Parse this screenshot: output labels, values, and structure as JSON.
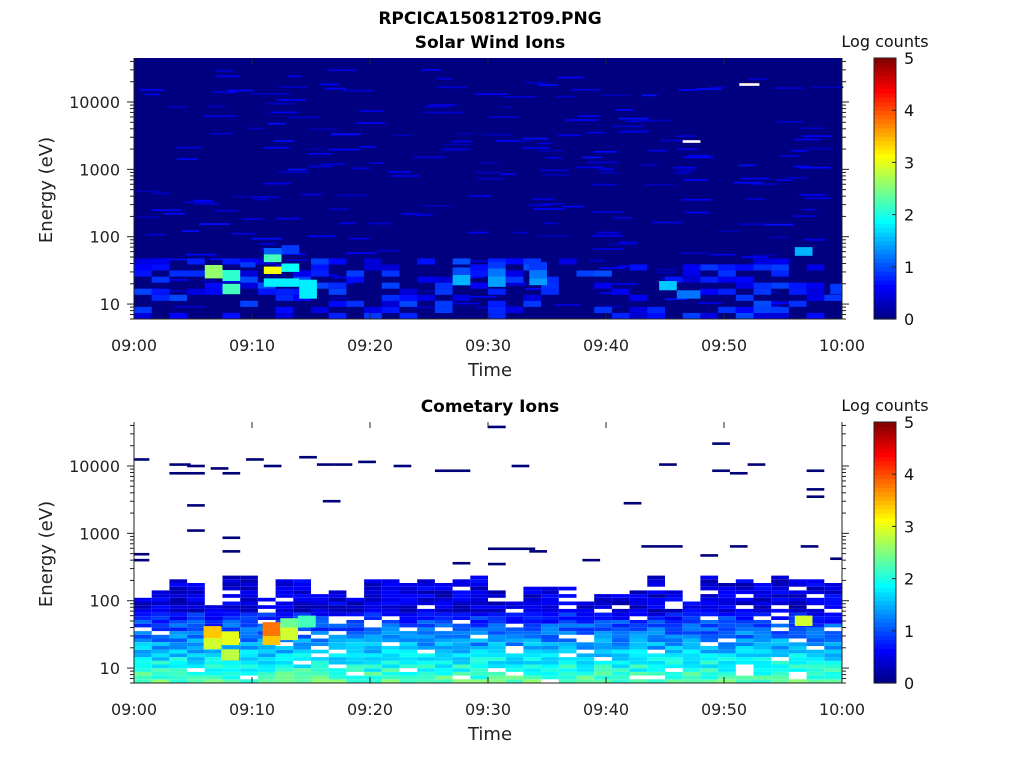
{
  "figure": {
    "title": "RPCICA150812T09.PNG"
  },
  "chart_data": [
    {
      "type": "heatmap",
      "title": "Solar Wind Ions",
      "xlabel": "Time",
      "ylabel": "Energy (eV)",
      "x_ticks": [
        "09:00",
        "09:10",
        "09:20",
        "09:30",
        "09:40",
        "09:50",
        "10:00"
      ],
      "y_ticks": [
        "10",
        "100",
        "1000",
        "10000"
      ],
      "y_scale": "log",
      "ylim": [
        6,
        45000
      ],
      "colorbar": {
        "label": "Log counts",
        "ticks": [
          "0",
          "1",
          "2",
          "3",
          "4",
          "5"
        ],
        "range": [
          0,
          5
        ],
        "colormap": "jet"
      },
      "background_value": 0,
      "cells": [
        {
          "t0": 6.0,
          "t1": 7.5,
          "e0": 24,
          "e1": 38,
          "v": 2.6
        },
        {
          "t0": 7.5,
          "t1": 9.0,
          "e0": 22,
          "e1": 32,
          "v": 2.1
        },
        {
          "t0": 7.5,
          "t1": 9.0,
          "e0": 14,
          "e1": 20,
          "v": 2.2
        },
        {
          "t0": 9.0,
          "t1": 10.3,
          "e0": 35,
          "e1": 42,
          "v": 0.9
        },
        {
          "t0": 11.0,
          "t1": 12.5,
          "e0": 28,
          "e1": 36,
          "v": 3.1
        },
        {
          "t0": 11.0,
          "t1": 12.5,
          "e0": 42,
          "e1": 55,
          "v": 2.2
        },
        {
          "t0": 11.0,
          "t1": 12.5,
          "e0": 55,
          "e1": 68,
          "v": 1.1
        },
        {
          "t0": 11.0,
          "t1": 14.0,
          "e0": 18,
          "e1": 24,
          "v": 1.8
        },
        {
          "t0": 12.5,
          "t1": 14.0,
          "e0": 30,
          "e1": 40,
          "v": 1.9
        },
        {
          "t0": 12.5,
          "t1": 14.0,
          "e0": 55,
          "e1": 75,
          "v": 0.9
        },
        {
          "t0": 14.0,
          "t1": 15.5,
          "e0": 12,
          "e1": 23,
          "v": 1.8
        },
        {
          "t0": 27.0,
          "t1": 28.5,
          "e0": 19,
          "e1": 27,
          "v": 1.5
        },
        {
          "t0": 27.0,
          "t1": 28.5,
          "e0": 28,
          "e1": 35,
          "v": 1.0
        },
        {
          "t0": 30.0,
          "t1": 31.5,
          "e0": 18,
          "e1": 26,
          "v": 1.4
        },
        {
          "t0": 30.0,
          "t1": 31.5,
          "e0": 26,
          "e1": 34,
          "v": 1.2
        },
        {
          "t0": 30.0,
          "t1": 31.5,
          "e0": 34,
          "e1": 42,
          "v": 0.9
        },
        {
          "t0": 33.5,
          "t1": 35.0,
          "e0": 19,
          "e1": 24,
          "v": 1.4
        },
        {
          "t0": 33.5,
          "t1": 35.0,
          "e0": 24,
          "e1": 32,
          "v": 1.2
        },
        {
          "t0": 33.5,
          "t1": 35.0,
          "e0": 32,
          "e1": 42,
          "v": 0.9
        },
        {
          "t0": 44.5,
          "t1": 46.0,
          "e0": 16,
          "e1": 22,
          "v": 1.6
        },
        {
          "t0": 46.0,
          "t1": 48.0,
          "e0": 12,
          "e1": 16,
          "v": 1.2
        },
        {
          "t0": 56.0,
          "t1": 57.5,
          "e0": 52,
          "e1": 70,
          "v": 1.5
        },
        {
          "t0": 59.0,
          "t1": 60.0,
          "e0": 14,
          "e1": 20,
          "v": 0.9
        },
        {
          "t0": 46.5,
          "t1": 48.0,
          "e0": 2500,
          "e1": 2700,
          "v": 5.0
        },
        {
          "t0": 51.3,
          "t1": 53.0,
          "e0": 17500,
          "e1": 19000,
          "v": 5.0
        }
      ]
    },
    {
      "type": "heatmap",
      "title": "Cometary Ions",
      "xlabel": "Time",
      "ylabel": "Energy (eV)",
      "x_ticks": [
        "09:00",
        "09:10",
        "09:20",
        "09:30",
        "09:40",
        "09:50",
        "10:00"
      ],
      "y_ticks": [
        "10",
        "100",
        "1000",
        "10000"
      ],
      "y_scale": "log",
      "ylim": [
        6,
        45000
      ],
      "colorbar": {
        "label": "Log counts",
        "ticks": [
          "0",
          "1",
          "2",
          "3",
          "4",
          "5"
        ],
        "range": [
          0,
          5
        ],
        "colormap": "jet"
      },
      "background_value": null,
      "bulk": {
        "e_min": 6,
        "e_max": 170,
        "time_bins": 40
      },
      "sparse_segments": [
        {
          "t0": 0.0,
          "t1": 1.3,
          "e": 12500
        },
        {
          "t0": 3.0,
          "t1": 4.8,
          "e": 10500
        },
        {
          "t0": 3.0,
          "t1": 6.0,
          "e": 7800
        },
        {
          "t0": 4.5,
          "t1": 6.0,
          "e": 10000
        },
        {
          "t0": 6.5,
          "t1": 8.0,
          "e": 9200
        },
        {
          "t0": 7.5,
          "t1": 9.0,
          "e": 7800
        },
        {
          "t0": 9.5,
          "t1": 11.0,
          "e": 12500
        },
        {
          "t0": 11.0,
          "t1": 12.5,
          "e": 10000
        },
        {
          "t0": 14.0,
          "t1": 15.5,
          "e": 13500
        },
        {
          "t0": 15.5,
          "t1": 17.0,
          "e": 10500
        },
        {
          "t0": 17.0,
          "t1": 18.5,
          "e": 10500
        },
        {
          "t0": 19.0,
          "t1": 20.5,
          "e": 11500
        },
        {
          "t0": 22.0,
          "t1": 23.5,
          "e": 10000
        },
        {
          "t0": 25.5,
          "t1": 28.5,
          "e": 8500
        },
        {
          "t0": 30.0,
          "t1": 31.5,
          "e": 38000
        },
        {
          "t0": 32.0,
          "t1": 33.5,
          "e": 10000
        },
        {
          "t0": 44.5,
          "t1": 46.0,
          "e": 10500
        },
        {
          "t0": 49.0,
          "t1": 50.5,
          "e": 21500
        },
        {
          "t0": 49.0,
          "t1": 50.5,
          "e": 8500
        },
        {
          "t0": 50.5,
          "t1": 52.0,
          "e": 7800
        },
        {
          "t0": 52.0,
          "t1": 53.5,
          "e": 10500
        },
        {
          "t0": 57.0,
          "t1": 58.5,
          "e": 8500
        },
        {
          "t0": 57.0,
          "t1": 58.5,
          "e": 4500
        },
        {
          "t0": 57.0,
          "t1": 58.5,
          "e": 3500
        },
        {
          "t0": 16.0,
          "t1": 17.5,
          "e": 3000
        },
        {
          "t0": 41.5,
          "t1": 43.0,
          "e": 2800
        },
        {
          "t0": 4.5,
          "t1": 6.0,
          "e": 2600
        },
        {
          "t0": 4.5,
          "t1": 6.0,
          "e": 1100
        },
        {
          "t0": 7.5,
          "t1": 9.0,
          "e": 860
        },
        {
          "t0": 7.5,
          "t1": 9.0,
          "e": 540
        },
        {
          "t0": 0.0,
          "t1": 1.3,
          "e": 490
        },
        {
          "t0": 0.0,
          "t1": 1.3,
          "e": 400
        },
        {
          "t0": 30.0,
          "t1": 34.0,
          "e": 590
        },
        {
          "t0": 33.5,
          "t1": 35.0,
          "e": 540
        },
        {
          "t0": 38.0,
          "t1": 39.5,
          "e": 400
        },
        {
          "t0": 43.0,
          "t1": 46.5,
          "e": 640
        },
        {
          "t0": 48.0,
          "t1": 49.5,
          "e": 470
        },
        {
          "t0": 50.5,
          "t1": 52.0,
          "e": 640
        },
        {
          "t0": 56.5,
          "t1": 58.0,
          "e": 640
        },
        {
          "t0": 59.0,
          "t1": 60.0,
          "e": 420
        },
        {
          "t0": 27.0,
          "t1": 28.5,
          "e": 360
        },
        {
          "t0": 30.0,
          "t1": 31.5,
          "e": 350
        }
      ],
      "hot_cells": [
        {
          "t0": 5.9,
          "t1": 7.4,
          "e0": 28,
          "e1": 42,
          "v": 3.4
        },
        {
          "t0": 5.9,
          "t1": 7.4,
          "e0": 19,
          "e1": 28,
          "v": 2.9
        },
        {
          "t0": 7.4,
          "t1": 8.9,
          "e0": 22,
          "e1": 35,
          "v": 3.0
        },
        {
          "t0": 7.4,
          "t1": 8.9,
          "e0": 13,
          "e1": 19,
          "v": 2.8
        },
        {
          "t0": 10.9,
          "t1": 12.4,
          "e0": 30,
          "e1": 48,
          "v": 3.8
        },
        {
          "t0": 10.9,
          "t1": 12.4,
          "e0": 22,
          "e1": 30,
          "v": 3.4
        },
        {
          "t0": 12.4,
          "t1": 13.9,
          "e0": 26,
          "e1": 40,
          "v": 2.9
        },
        {
          "t0": 12.4,
          "t1": 13.9,
          "e0": 40,
          "e1": 55,
          "v": 2.4
        },
        {
          "t0": 13.9,
          "t1": 15.4,
          "e0": 40,
          "e1": 60,
          "v": 2.2
        },
        {
          "t0": 56.0,
          "t1": 57.5,
          "e0": 42,
          "e1": 60,
          "v": 2.9
        }
      ]
    }
  ]
}
